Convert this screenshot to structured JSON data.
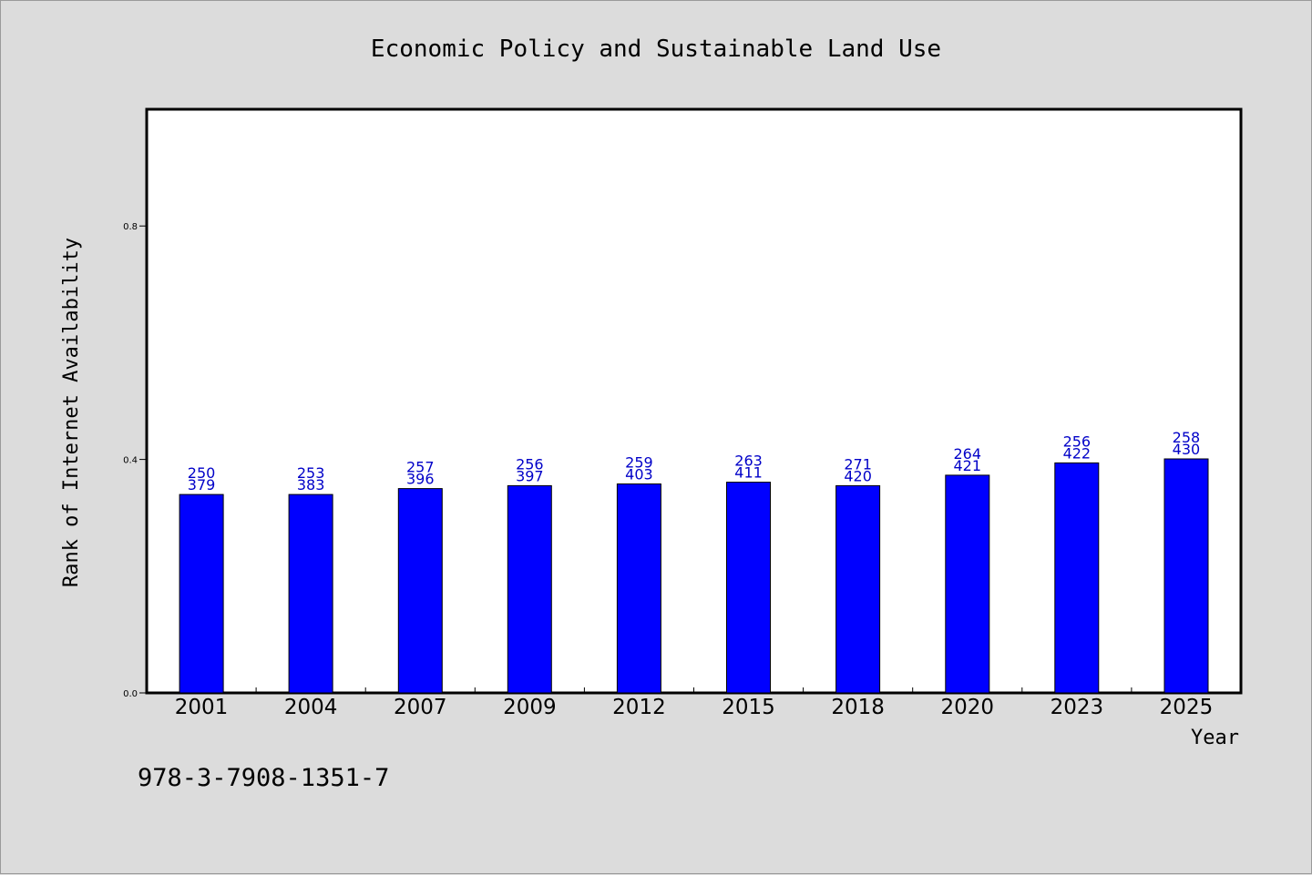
{
  "chart_data": {
    "type": "bar",
    "title": "Economic Policy and Sustainable Land Use",
    "xlabel": "Year",
    "ylabel": "Rank of Internet Availability",
    "categories": [
      "2001",
      "2004",
      "2007",
      "2009",
      "2012",
      "2015",
      "2018",
      "2020",
      "2023",
      "2025"
    ],
    "series": [
      {
        "values": [
          0.34,
          0.34,
          0.35,
          0.355,
          0.358,
          0.361,
          0.355,
          0.373,
          0.394,
          0.401
        ],
        "color": "#0000ff",
        "labels_top": [
          "250",
          "253",
          "257",
          "256",
          "259",
          "263",
          "271",
          "264",
          "256",
          "258"
        ],
        "labels_bottom": [
          "379",
          "383",
          "396",
          "397",
          "403",
          "411",
          "420",
          "421",
          "422",
          "430"
        ]
      }
    ],
    "ylim": [
      0.0,
      1.0
    ],
    "yticks": [
      "0.0",
      "0.4",
      "0.8"
    ],
    "grid": false,
    "legend": "none"
  },
  "annotation": "978-3-7908-1351-7",
  "colors": {
    "background": "#dcdcdc",
    "plot_background": "#ffffff",
    "bar": "#0000ff",
    "data_label": "#0000c8"
  }
}
